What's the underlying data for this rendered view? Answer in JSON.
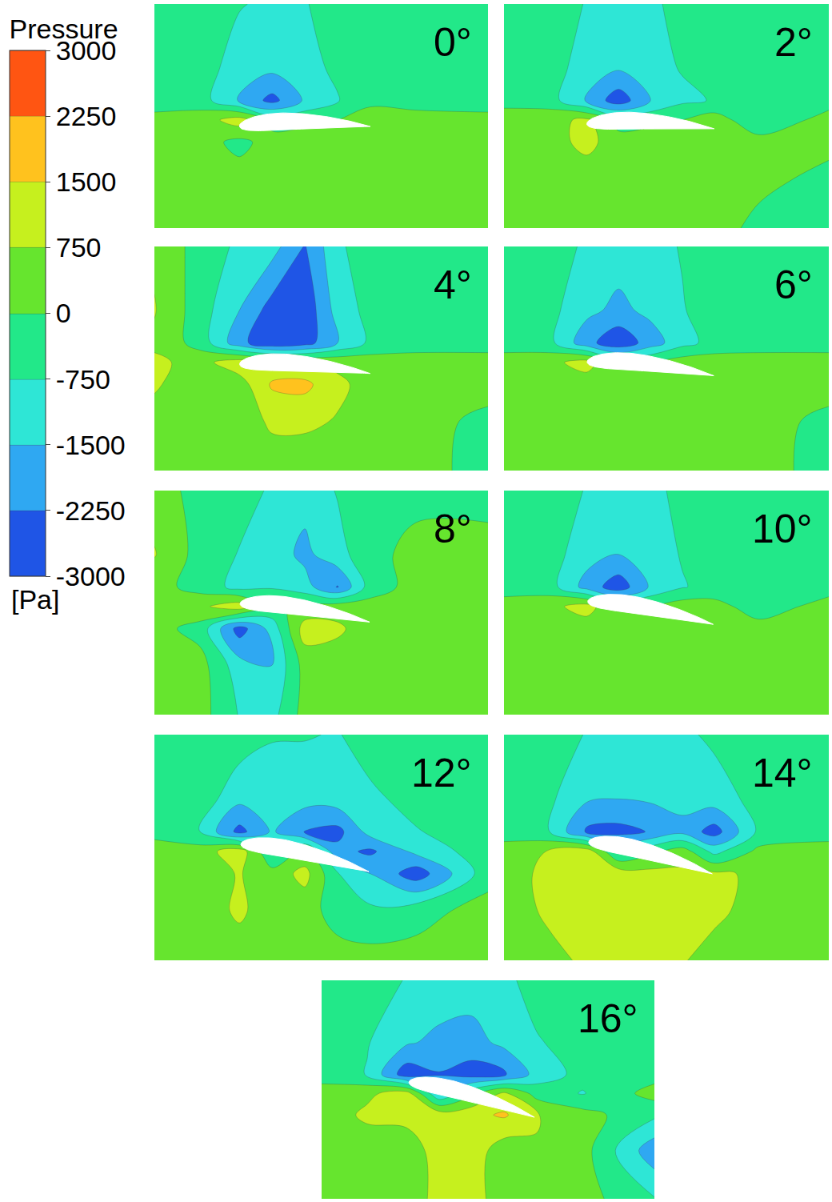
{
  "chart_data": {
    "type": "contour",
    "tick_labels": false,
    "colorbar": {
      "title": "Pressure",
      "unit": "[Pa]",
      "range": [
        -3000,
        3000
      ],
      "ticks": [
        3000,
        2250,
        1500,
        750,
        0,
        -750,
        -1500,
        -2250,
        -3000
      ],
      "colors": [
        "#1f55e6",
        "#2fa8f2",
        "#2ee6d6",
        "#22e889",
        "#66e52e",
        "#c6f01e",
        "#ffc21e",
        "#ff5512"
      ]
    },
    "x": [
      -0.65,
      -0.3,
      0,
      0.25,
      0.5,
      0.75,
      1.0,
      1.35,
      1.9
    ],
    "y": [
      -0.78,
      -0.4,
      -0.12,
      0.05,
      0.2,
      0.45,
      0.94
    ],
    "xlim": [
      -0.65,
      1.9
    ],
    "ylim": [
      -0.78,
      0.94
    ],
    "panels": [
      {
        "title": "0°",
        "angle": 0,
        "z": [
          [
            300,
            300,
            300,
            300,
            300,
            300,
            300,
            300,
            300
          ],
          [
            300,
            300,
            300,
            300,
            300,
            300,
            300,
            300,
            300
          ],
          [
            300,
            300,
            -200,
            300,
            400,
            400,
            300,
            300,
            300
          ],
          [
            200,
            400,
            1100,
            -300,
            -200,
            0,
            600,
            300,
            200
          ],
          [
            -300,
            -400,
            -1600,
            -2500,
            -1400,
            -800,
            -300,
            -300,
            -300
          ],
          [
            -300,
            -400,
            -1100,
            -1300,
            -1000,
            -600,
            -300,
            -300,
            -300
          ],
          [
            -300,
            -300,
            -700,
            -900,
            -800,
            -400,
            -300,
            -300,
            -300
          ]
        ]
      },
      {
        "title": "2°",
        "angle": 2,
        "z": [
          [
            300,
            300,
            300,
            300,
            300,
            300,
            300,
            -200,
            -300
          ],
          [
            300,
            300,
            300,
            300,
            300,
            300,
            300,
            200,
            -200
          ],
          [
            300,
            400,
            1000,
            300,
            400,
            400,
            300,
            300,
            200
          ],
          [
            300,
            500,
            900,
            -300,
            -200,
            0,
            400,
            -600,
            300
          ],
          [
            -200,
            -400,
            -1600,
            -2700,
            -1500,
            -900,
            -700,
            -300,
            -300
          ],
          [
            -300,
            -400,
            -1100,
            -1400,
            -1000,
            -700,
            -400,
            -300,
            -300
          ],
          [
            -300,
            -300,
            -800,
            -1000,
            -900,
            -500,
            -300,
            -300,
            -300
          ]
        ]
      },
      {
        "title": "4°",
        "angle": 4,
        "z": [
          [
            400,
            300,
            300,
            300,
            300,
            300,
            300,
            300,
            -300
          ],
          [
            600,
            400,
            300,
            900,
            900,
            700,
            300,
            300,
            -200
          ],
          [
            800,
            500,
            400,
            1600,
            1700,
            900,
            500,
            300,
            300
          ],
          [
            900,
            500,
            1200,
            1000,
            800,
            600,
            400,
            300,
            300
          ],
          [
            600,
            -300,
            -2000,
            -2900,
            -2600,
            -1500,
            -600,
            -300,
            -300
          ],
          [
            800,
            -400,
            -1500,
            -2600,
            -2800,
            -1200,
            -500,
            -300,
            -300
          ],
          [
            600,
            -300,
            -900,
            -1200,
            -2300,
            -900,
            -300,
            -300,
            -300
          ]
        ]
      },
      {
        "title": "6°",
        "angle": 6,
        "z": [
          [
            300,
            300,
            300,
            300,
            300,
            300,
            300,
            300,
            -300
          ],
          [
            300,
            300,
            300,
            400,
            300,
            300,
            300,
            300,
            -200
          ],
          [
            300,
            400,
            300,
            500,
            500,
            400,
            300,
            300,
            300
          ],
          [
            300,
            500,
            1100,
            -200,
            0,
            400,
            400,
            300,
            300
          ],
          [
            -300,
            -500,
            -2000,
            -2800,
            -1900,
            -1000,
            -500,
            -300,
            -300
          ],
          [
            -300,
            -500,
            -1300,
            -1700,
            -1300,
            -800,
            -400,
            -300,
            -300
          ],
          [
            -300,
            -300,
            -900,
            -1100,
            -1000,
            -700,
            -300,
            -300,
            -300
          ]
        ]
      },
      {
        "title": "8°",
        "angle": 8,
        "z": [
          [
            300,
            300,
            -800,
            -1000,
            300,
            300,
            300,
            300,
            300
          ],
          [
            300,
            300,
            -1200,
            -1500,
            300,
            300,
            300,
            300,
            300
          ],
          [
            300,
            -300,
            -2600,
            -1200,
            1100,
            900,
            300,
            300,
            300
          ],
          [
            500,
            600,
            1200,
            -200,
            200,
            400,
            300,
            300,
            300
          ],
          [
            300,
            -300,
            -1000,
            -800,
            -1200,
            -2300,
            -400,
            300,
            300
          ],
          [
            800,
            -300,
            -800,
            -1100,
            -1700,
            -1000,
            -300,
            300,
            300
          ],
          [
            400,
            -300,
            -300,
            -900,
            -1200,
            -700,
            -300,
            -300,
            -300
          ]
        ]
      },
      {
        "title": "10°",
        "angle": 10,
        "z": [
          [
            300,
            300,
            300,
            300,
            300,
            300,
            300,
            300,
            300
          ],
          [
            300,
            300,
            300,
            300,
            300,
            300,
            300,
            300,
            300
          ],
          [
            300,
            300,
            300,
            400,
            400,
            400,
            300,
            300,
            300
          ],
          [
            300,
            500,
            1100,
            -100,
            0,
            400,
            300,
            -400,
            300
          ],
          [
            -300,
            -400,
            -1800,
            -2700,
            -1400,
            -800,
            -500,
            -300,
            -300
          ],
          [
            -300,
            -400,
            -1200,
            -1500,
            -1100,
            -700,
            -400,
            -300,
            -300
          ],
          [
            -300,
            -300,
            -800,
            -1000,
            -900,
            -600,
            -300,
            -300,
            -300
          ]
        ]
      },
      {
        "title": "12°",
        "angle": 12,
        "z": [
          [
            300,
            300,
            300,
            300,
            300,
            300,
            300,
            300,
            300
          ],
          [
            300,
            300,
            900,
            300,
            300,
            -300,
            -600,
            -300,
            300
          ],
          [
            300,
            400,
            800,
            300,
            1000,
            -700,
            -1500,
            -2700,
            -300
          ],
          [
            300,
            400,
            1200,
            -800,
            200,
            -2000,
            -2400,
            -1300,
            -300
          ],
          [
            -200,
            -800,
            -2500,
            -1400,
            -2300,
            -2500,
            -1200,
            -800,
            -300
          ],
          [
            -300,
            -300,
            -1300,
            -1100,
            -1200,
            -1100,
            -900,
            -500,
            -300
          ],
          [
            -300,
            -300,
            -300,
            -700,
            -700,
            -800,
            -400,
            -300,
            -300
          ]
        ]
      },
      {
        "title": "14°",
        "angle": 14,
        "z": [
          [
            300,
            500,
            900,
            1000,
            900,
            800,
            500,
            300,
            300
          ],
          [
            300,
            900,
            1100,
            1200,
            1100,
            1000,
            900,
            500,
            300
          ],
          [
            300,
            1000,
            1300,
            1200,
            1000,
            900,
            900,
            600,
            300
          ],
          [
            300,
            800,
            1200,
            -900,
            -200,
            400,
            -1000,
            200,
            300
          ],
          [
            -300,
            -700,
            -2400,
            -2500,
            -2200,
            -1700,
            -2600,
            -600,
            -300
          ],
          [
            -300,
            -600,
            -1400,
            -1500,
            -1400,
            -1300,
            -1100,
            -500,
            -300
          ],
          [
            -300,
            -300,
            -800,
            -1100,
            -1000,
            -900,
            -600,
            -300,
            -300
          ]
        ]
      },
      {
        "title": "16°",
        "angle": 16,
        "z": [
          [
            300,
            300,
            300,
            1000,
            1100,
            300,
            300,
            300,
            -700
          ],
          [
            300,
            300,
            300,
            1100,
            1200,
            300,
            700,
            300,
            -2000
          ],
          [
            300,
            900,
            1000,
            1200,
            1300,
            1600,
            800,
            300,
            -600
          ],
          [
            300,
            600,
            1100,
            -1500,
            -200,
            900,
            -300,
            -800,
            300
          ],
          [
            -300,
            -800,
            -2700,
            -2300,
            -2600,
            -2400,
            -1200,
            -500,
            -300
          ],
          [
            -300,
            -700,
            -1400,
            -1700,
            -1800,
            -1300,
            -800,
            -500,
            -300
          ],
          [
            -300,
            -300,
            -800,
            -1000,
            -1100,
            -900,
            -500,
            -300,
            -300
          ]
        ]
      }
    ]
  }
}
